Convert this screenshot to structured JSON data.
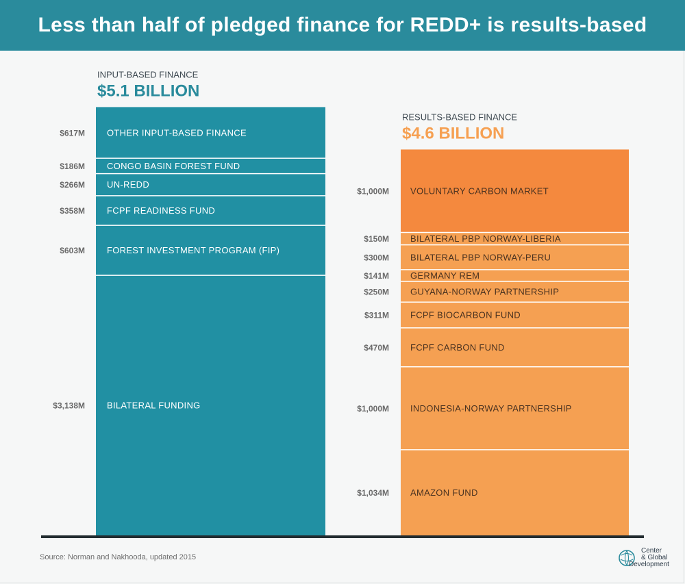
{
  "title": "Less than half of pledged finance for REDD+ is results-based",
  "source": "Source: Norman and Nakhooda, updated 2015",
  "logo": {
    "line1": "Center",
    "line2": "& Global",
    "line3": "Development"
  },
  "colors": {
    "header": "#2a8b9c",
    "input": "#2190a3",
    "results": "#f5a052",
    "results_top": "#f4893e",
    "results_head": "#f6a052",
    "label_head": "#3f4a52",
    "value_text": "#6a6a6a",
    "segment_text": "#ffffff",
    "results_segment_text": "#4a3220",
    "baseline": "#222c30"
  },
  "chart_data": {
    "type": "stacked-bar",
    "unit": "$M",
    "series": [
      {
        "name": "INPUT-BASED FINANCE",
        "total_label": "$5.1 BILLION",
        "total": 5.1,
        "segments": [
          {
            "label": "OTHER INPUT-BASED FINANCE",
            "value": 617,
            "value_label": "$617M"
          },
          {
            "label": "CONGO BASIN FOREST FUND",
            "value": 186,
            "value_label": "$186M"
          },
          {
            "label": "UN-REDD",
            "value": 266,
            "value_label": "$266M"
          },
          {
            "label": "FCPF READINESS FUND",
            "value": 358,
            "value_label": "$358M"
          },
          {
            "label": "FOREST INVESTMENT PROGRAM (FIP)",
            "value": 603,
            "value_label": "$603M"
          },
          {
            "label": "BILATERAL FUNDING",
            "value": 3138,
            "value_label": "$3,138M"
          }
        ]
      },
      {
        "name": "RESULTS-BASED FINANCE",
        "total_label": "$4.6 BILLION",
        "total": 4.6,
        "segments": [
          {
            "label": "VOLUNTARY CARBON MARKET",
            "value": 1000,
            "value_label": "$1,000M"
          },
          {
            "label": "BILATERAL PBP NORWAY-LIBERIA",
            "value": 150,
            "value_label": "$150M"
          },
          {
            "label": "BILATERAL PBP NORWAY-PERU",
            "value": 300,
            "value_label": "$300M"
          },
          {
            "label": "GERMANY REM",
            "value": 141,
            "value_label": "$141M"
          },
          {
            "label": "GUYANA-NORWAY PARTNERSHIP",
            "value": 250,
            "value_label": "$250M"
          },
          {
            "label": "FCPF BIOCARBON FUND",
            "value": 311,
            "value_label": "$311M"
          },
          {
            "label": "FCPF CARBON FUND",
            "value": 470,
            "value_label": "$470M"
          },
          {
            "label": "INDONESIA-NORWAY PARTNERSHIP",
            "value": 1000,
            "value_label": "$1,000M"
          },
          {
            "label": "AMAZON FUND",
            "value": 1034,
            "value_label": "$1,034M"
          }
        ]
      }
    ]
  }
}
